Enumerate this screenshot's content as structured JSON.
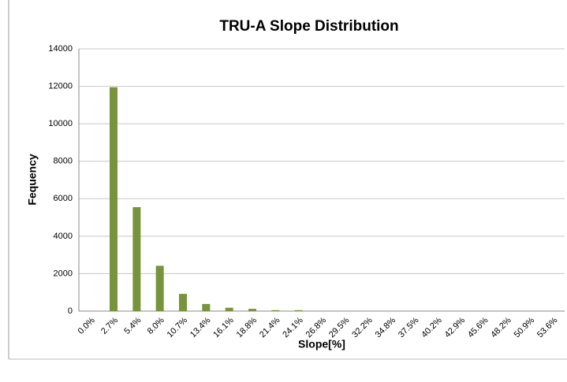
{
  "chart_data": {
    "type": "bar",
    "title": "TRU-A Slope Distribution",
    "x_label": "Slope[%]",
    "y_label": "Fequency",
    "categories": [
      "0.0%",
      "2.7%",
      "5.4%",
      "8.0%",
      "10.7%",
      "13.4%",
      "16.1%",
      "18.8%",
      "21.4%",
      "24.1%",
      "26.8%",
      "29.5%",
      "32.2%",
      "34.8%",
      "37.5%",
      "40.2%",
      "42.9%",
      "45.6%",
      "48.2%",
      "50.9%",
      "53.6%"
    ],
    "values": [
      0,
      11950,
      5550,
      2420,
      920,
      380,
      180,
      120,
      50,
      50,
      0,
      0,
      0,
      0,
      0,
      0,
      0,
      0,
      0,
      0,
      0
    ],
    "color": "#77933c",
    "ylim": [
      0,
      14000
    ],
    "yticks": [
      0,
      2000,
      4000,
      6000,
      8000,
      10000,
      12000,
      14000
    ],
    "grid": true
  }
}
